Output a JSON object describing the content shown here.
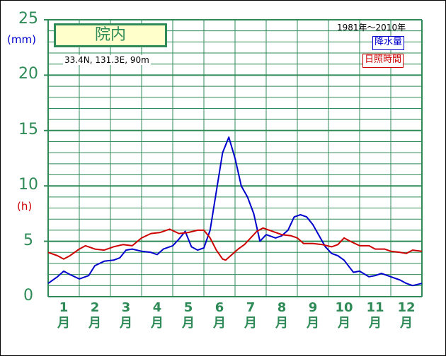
{
  "units": {
    "left": "(mm)",
    "left_color": "#0000cc",
    "right": "(h)",
    "right_color": "#cc0000"
  },
  "station": {
    "name": "院内",
    "coords": "33.4N,  131.3E,  90m"
  },
  "period": "1981年～2010年",
  "legend": {
    "precip": "降水量",
    "sunshine": "日照時間"
  },
  "colors": {
    "grid": "#2e8b57",
    "precip": "#0000cc",
    "sunshine": "#cc0000",
    "tick_text": "#2e8b57"
  },
  "chart_data": {
    "type": "line",
    "ylim": [
      0,
      25
    ],
    "y_ticks": [
      "0",
      "5",
      "10",
      "15",
      "20",
      "25"
    ],
    "x_domain": [
      0.5,
      12.5
    ],
    "months": [
      {
        "num": "1",
        "kanji": "月"
      },
      {
        "num": "2",
        "kanji": "月"
      },
      {
        "num": "3",
        "kanji": "月"
      },
      {
        "num": "4",
        "kanji": "月"
      },
      {
        "num": "5",
        "kanji": "月"
      },
      {
        "num": "6",
        "kanji": "月"
      },
      {
        "num": "7",
        "kanji": "月"
      },
      {
        "num": "8",
        "kanji": "月"
      },
      {
        "num": "9",
        "kanji": "月"
      },
      {
        "num": "10",
        "kanji": "月"
      },
      {
        "num": "11",
        "kanji": "月"
      },
      {
        "num": "12",
        "kanji": "月"
      }
    ],
    "series": [
      {
        "name": "降水量",
        "color": "#0000cc",
        "points": [
          [
            0.5,
            1.2
          ],
          [
            0.8,
            1.8
          ],
          [
            1.0,
            2.3
          ],
          [
            1.2,
            2.0
          ],
          [
            1.5,
            1.6
          ],
          [
            1.8,
            1.9
          ],
          [
            2.0,
            2.8
          ],
          [
            2.3,
            3.2
          ],
          [
            2.6,
            3.3
          ],
          [
            2.8,
            3.5
          ],
          [
            3.0,
            4.2
          ],
          [
            3.2,
            4.3
          ],
          [
            3.5,
            4.1
          ],
          [
            3.8,
            4.0
          ],
          [
            4.0,
            3.8
          ],
          [
            4.2,
            4.3
          ],
          [
            4.5,
            4.6
          ],
          [
            4.7,
            5.2
          ],
          [
            4.9,
            5.9
          ],
          [
            5.1,
            4.5
          ],
          [
            5.3,
            4.2
          ],
          [
            5.5,
            4.4
          ],
          [
            5.7,
            6.0
          ],
          [
            5.9,
            9.5
          ],
          [
            6.1,
            13.0
          ],
          [
            6.3,
            14.4
          ],
          [
            6.5,
            12.5
          ],
          [
            6.7,
            10.0
          ],
          [
            6.9,
            9.0
          ],
          [
            7.1,
            7.5
          ],
          [
            7.3,
            5.0
          ],
          [
            7.5,
            5.6
          ],
          [
            7.8,
            5.3
          ],
          [
            8.0,
            5.5
          ],
          [
            8.2,
            6.0
          ],
          [
            8.4,
            7.2
          ],
          [
            8.6,
            7.4
          ],
          [
            8.8,
            7.2
          ],
          [
            9.0,
            6.5
          ],
          [
            9.2,
            5.5
          ],
          [
            9.4,
            4.5
          ],
          [
            9.6,
            3.9
          ],
          [
            9.8,
            3.7
          ],
          [
            10.0,
            3.3
          ],
          [
            10.3,
            2.2
          ],
          [
            10.5,
            2.3
          ],
          [
            10.8,
            1.8
          ],
          [
            11.0,
            1.9
          ],
          [
            11.2,
            2.1
          ],
          [
            11.5,
            1.8
          ],
          [
            11.8,
            1.5
          ],
          [
            12.0,
            1.2
          ],
          [
            12.2,
            1.0
          ],
          [
            12.5,
            1.2
          ]
        ]
      },
      {
        "name": "日照時間",
        "color": "#cc0000",
        "points": [
          [
            0.5,
            4.0
          ],
          [
            0.8,
            3.7
          ],
          [
            1.0,
            3.4
          ],
          [
            1.2,
            3.7
          ],
          [
            1.5,
            4.3
          ],
          [
            1.7,
            4.6
          ],
          [
            2.0,
            4.3
          ],
          [
            2.3,
            4.2
          ],
          [
            2.6,
            4.5
          ],
          [
            2.9,
            4.7
          ],
          [
            3.2,
            4.6
          ],
          [
            3.5,
            5.3
          ],
          [
            3.8,
            5.7
          ],
          [
            4.1,
            5.8
          ],
          [
            4.4,
            6.1
          ],
          [
            4.7,
            5.7
          ],
          [
            5.0,
            5.8
          ],
          [
            5.3,
            6.0
          ],
          [
            5.5,
            6.0
          ],
          [
            5.7,
            5.3
          ],
          [
            5.9,
            4.2
          ],
          [
            6.1,
            3.4
          ],
          [
            6.2,
            3.3
          ],
          [
            6.4,
            3.8
          ],
          [
            6.6,
            4.3
          ],
          [
            6.8,
            4.7
          ],
          [
            7.0,
            5.3
          ],
          [
            7.2,
            5.9
          ],
          [
            7.4,
            6.2
          ],
          [
            7.6,
            6.0
          ],
          [
            7.8,
            5.8
          ],
          [
            8.0,
            5.6
          ],
          [
            8.3,
            5.5
          ],
          [
            8.5,
            5.3
          ],
          [
            8.7,
            4.8
          ],
          [
            9.0,
            4.8
          ],
          [
            9.3,
            4.7
          ],
          [
            9.6,
            4.5
          ],
          [
            9.8,
            4.7
          ],
          [
            10.0,
            5.3
          ],
          [
            10.2,
            5.0
          ],
          [
            10.5,
            4.6
          ],
          [
            10.8,
            4.6
          ],
          [
            11.0,
            4.3
          ],
          [
            11.3,
            4.3
          ],
          [
            11.5,
            4.1
          ],
          [
            11.8,
            4.0
          ],
          [
            12.0,
            3.9
          ],
          [
            12.2,
            4.2
          ],
          [
            12.5,
            4.1
          ]
        ]
      }
    ]
  }
}
